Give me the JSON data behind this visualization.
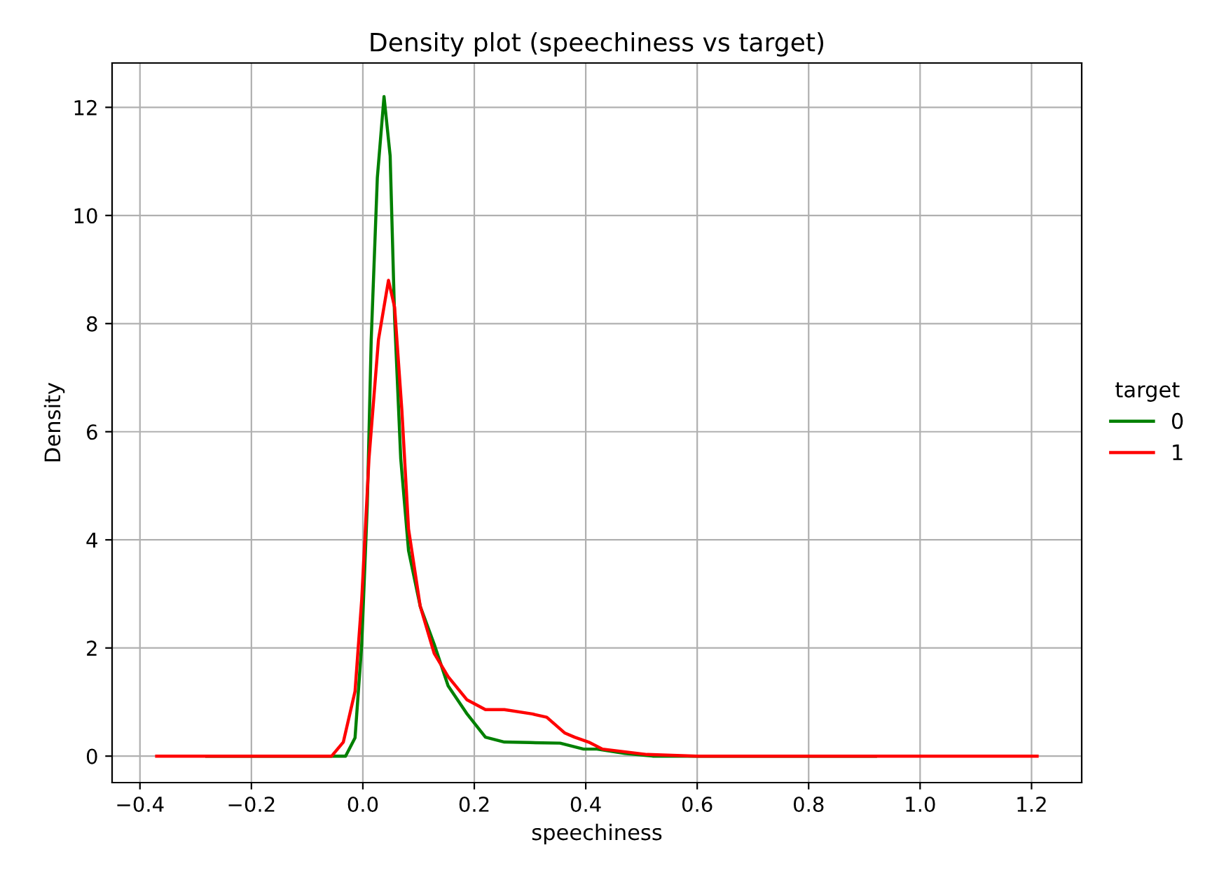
{
  "chart_data": {
    "type": "line",
    "title": "Density plot (speechiness vs target)",
    "xlabel": "speechiness",
    "ylabel": "Density",
    "legend_title": "target",
    "xlim": [
      -0.45,
      1.29
    ],
    "ylim": [
      -0.49,
      12.82
    ],
    "xticks": [
      {
        "value": -0.4,
        "label": "−0.4"
      },
      {
        "value": -0.2,
        "label": "−0.2"
      },
      {
        "value": 0.0,
        "label": "0.0"
      },
      {
        "value": 0.2,
        "label": "0.2"
      },
      {
        "value": 0.4,
        "label": "0.4"
      },
      {
        "value": 0.6,
        "label": "0.6"
      },
      {
        "value": 0.8,
        "label": "0.8"
      },
      {
        "value": 1.0,
        "label": "1.0"
      },
      {
        "value": 1.2,
        "label": "1.2"
      }
    ],
    "yticks": [
      0,
      2,
      4,
      6,
      8,
      10,
      12
    ],
    "grid": true,
    "legend": "right",
    "series": [
      {
        "name": "0",
        "color": "#008000",
        "x": [
          -0.28,
          -0.05,
          -0.031,
          -0.014,
          -0.002,
          0.008,
          0.015,
          0.026,
          0.038,
          0.049,
          0.057,
          0.068,
          0.082,
          0.103,
          0.128,
          0.153,
          0.187,
          0.22,
          0.254,
          0.3,
          0.354,
          0.396,
          0.42,
          0.47,
          0.52,
          0.92
        ],
        "values": [
          0,
          0,
          0,
          0.34,
          2.07,
          4.66,
          7.7,
          10.7,
          12.2,
          11.1,
          8.1,
          5.5,
          3.8,
          2.77,
          2.07,
          1.3,
          0.78,
          0.35,
          0.26,
          0.25,
          0.24,
          0.13,
          0.13,
          0.05,
          0,
          0
        ]
      },
      {
        "name": "1",
        "color": "#ff0000",
        "x": [
          -0.37,
          -0.056,
          -0.035,
          -0.014,
          -0.002,
          0.011,
          0.028,
          0.046,
          0.057,
          0.07,
          0.082,
          0.103,
          0.128,
          0.153,
          0.187,
          0.22,
          0.254,
          0.304,
          0.33,
          0.362,
          0.38,
          0.405,
          0.43,
          0.51,
          0.6,
          1.21
        ],
        "values": [
          0,
          0,
          0.26,
          1.2,
          2.9,
          5.5,
          7.7,
          8.8,
          8.3,
          6.4,
          4.2,
          2.77,
          1.9,
          1.47,
          1.04,
          0.86,
          0.86,
          0.78,
          0.72,
          0.43,
          0.35,
          0.26,
          0.13,
          0.03,
          0,
          0
        ]
      }
    ]
  }
}
